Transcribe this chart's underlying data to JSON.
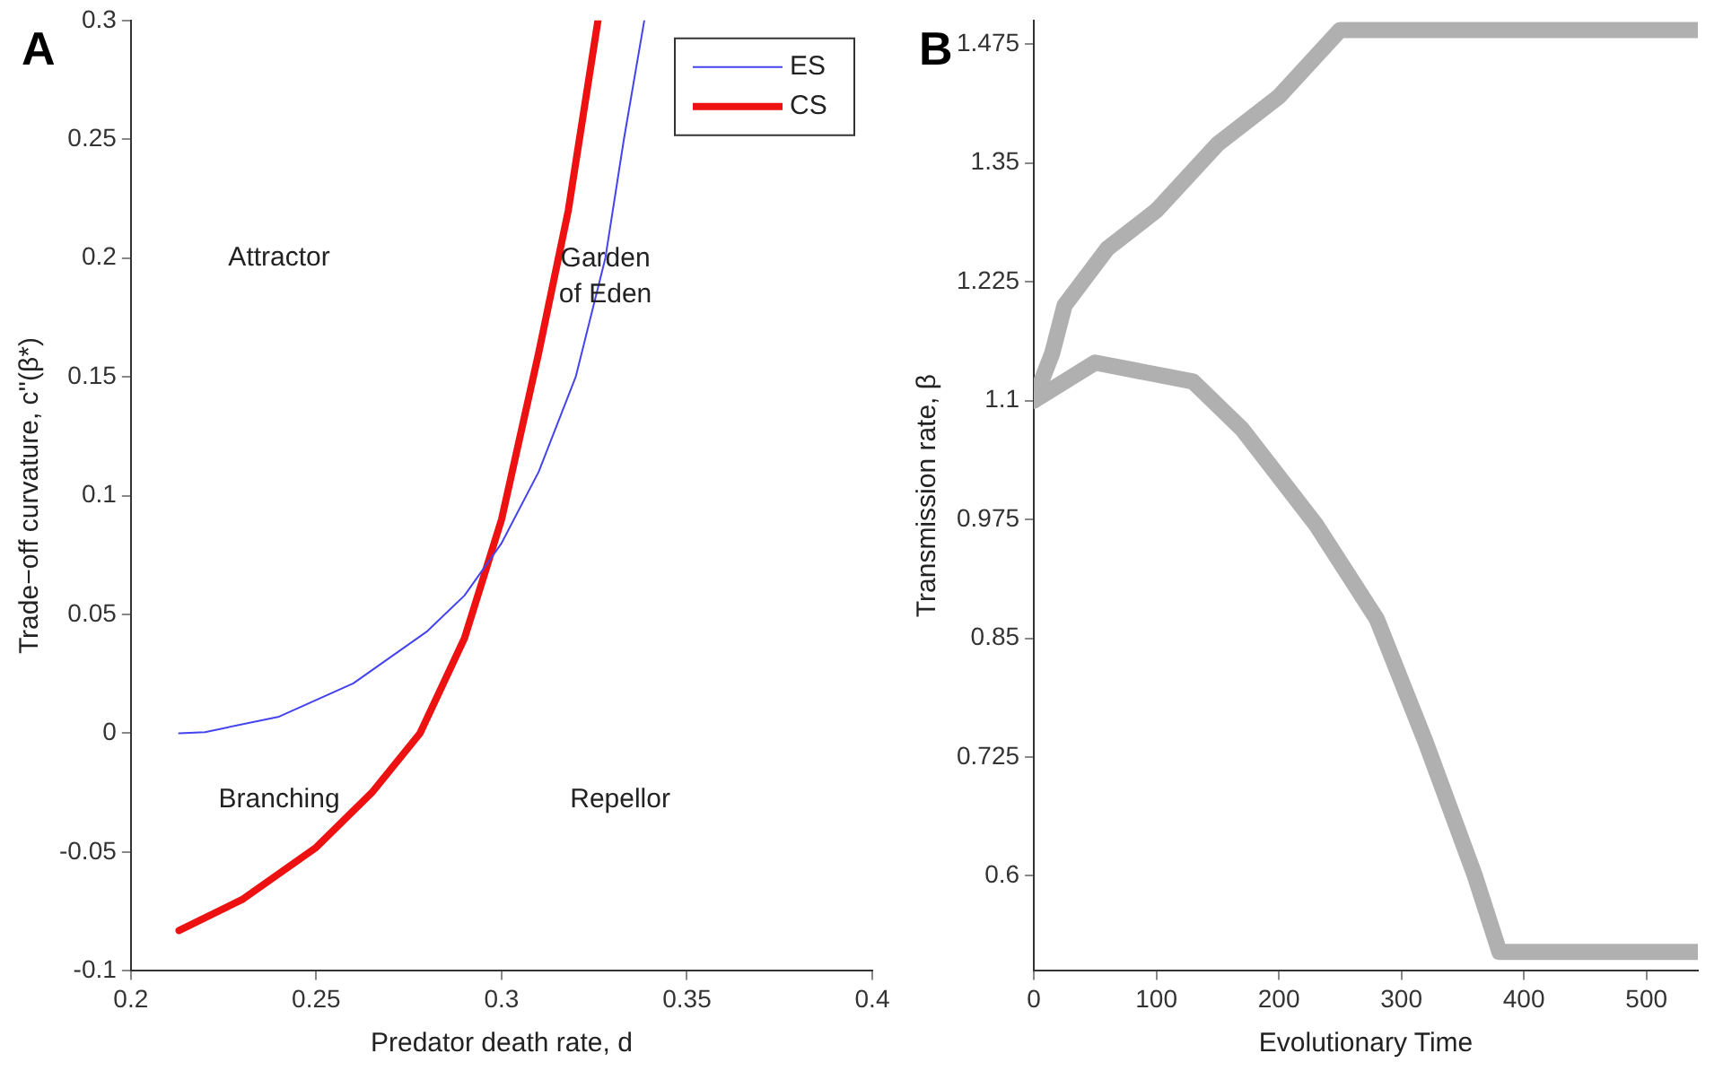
{
  "chart_data": [
    {
      "type": "line",
      "xlabel": "Predator death rate, d",
      "ylabel": "Trade−off curvature, c''(β*)",
      "xlim": [
        0.2,
        0.4
      ],
      "xticks": [
        0.2,
        0.25,
        0.3,
        0.35,
        0.4
      ],
      "ylim": [
        -0.1,
        0.3
      ],
      "yticks": [
        -0.1,
        -0.05,
        0,
        0.05,
        0.1,
        0.15,
        0.2,
        0.25,
        0.3
      ],
      "legend": "top right",
      "grid": false,
      "annotations": [
        "A",
        "Attractor",
        "Garden of Eden",
        "Branching",
        "Repellor"
      ],
      "series": [
        {
          "name": "ES",
          "color": "#4444ee",
          "x": [
            0.213,
            0.22,
            0.24,
            0.26,
            0.28,
            0.29,
            0.3,
            0.31,
            0.32,
            0.328,
            0.333,
            0.3385
          ],
          "values": [
            0,
            0.0005,
            0.007,
            0.021,
            0.043,
            0.058,
            0.08,
            0.11,
            0.15,
            0.2,
            0.25,
            0.3
          ]
        },
        {
          "name": "CS",
          "color": "#ee1111",
          "x": [
            0.213,
            0.23,
            0.25,
            0.265,
            0.278,
            0.29,
            0.3,
            0.31,
            0.318,
            0.326
          ],
          "values": [
            -0.083,
            -0.07,
            -0.048,
            -0.025,
            0,
            0.04,
            0.09,
            0.16,
            0.22,
            0.3
          ]
        }
      ]
    },
    {
      "type": "line",
      "xlabel": "Evolutionary Time",
      "ylabel": "Transmission rate, β",
      "xlim": [
        0,
        542
      ],
      "xticks": [
        0,
        100,
        200,
        300,
        400,
        500
      ],
      "ylim": [
        0.5,
        1.5
      ],
      "yticks": [
        0.6,
        0.725,
        0.85,
        0.975,
        1.1,
        1.225,
        1.35,
        1.475
      ],
      "grid": false,
      "annotations": [
        "B"
      ],
      "series": [
        {
          "color": "#b0b0b0",
          "x": [
            0,
            15,
            25,
            60,
            100,
            150,
            200,
            250,
            542
          ],
          "values": [
            1.1,
            1.15,
            1.2,
            1.26,
            1.3,
            1.37,
            1.42,
            1.49,
            1.49
          ]
        },
        {
          "color": "#b0b0b0",
          "x": [
            0,
            50,
            130,
            170,
            230,
            280,
            320,
            360,
            380,
            542
          ],
          "values": [
            1.1,
            1.14,
            1.12,
            1.07,
            0.97,
            0.87,
            0.74,
            0.6,
            0.52,
            0.52
          ]
        }
      ]
    }
  ]
}
